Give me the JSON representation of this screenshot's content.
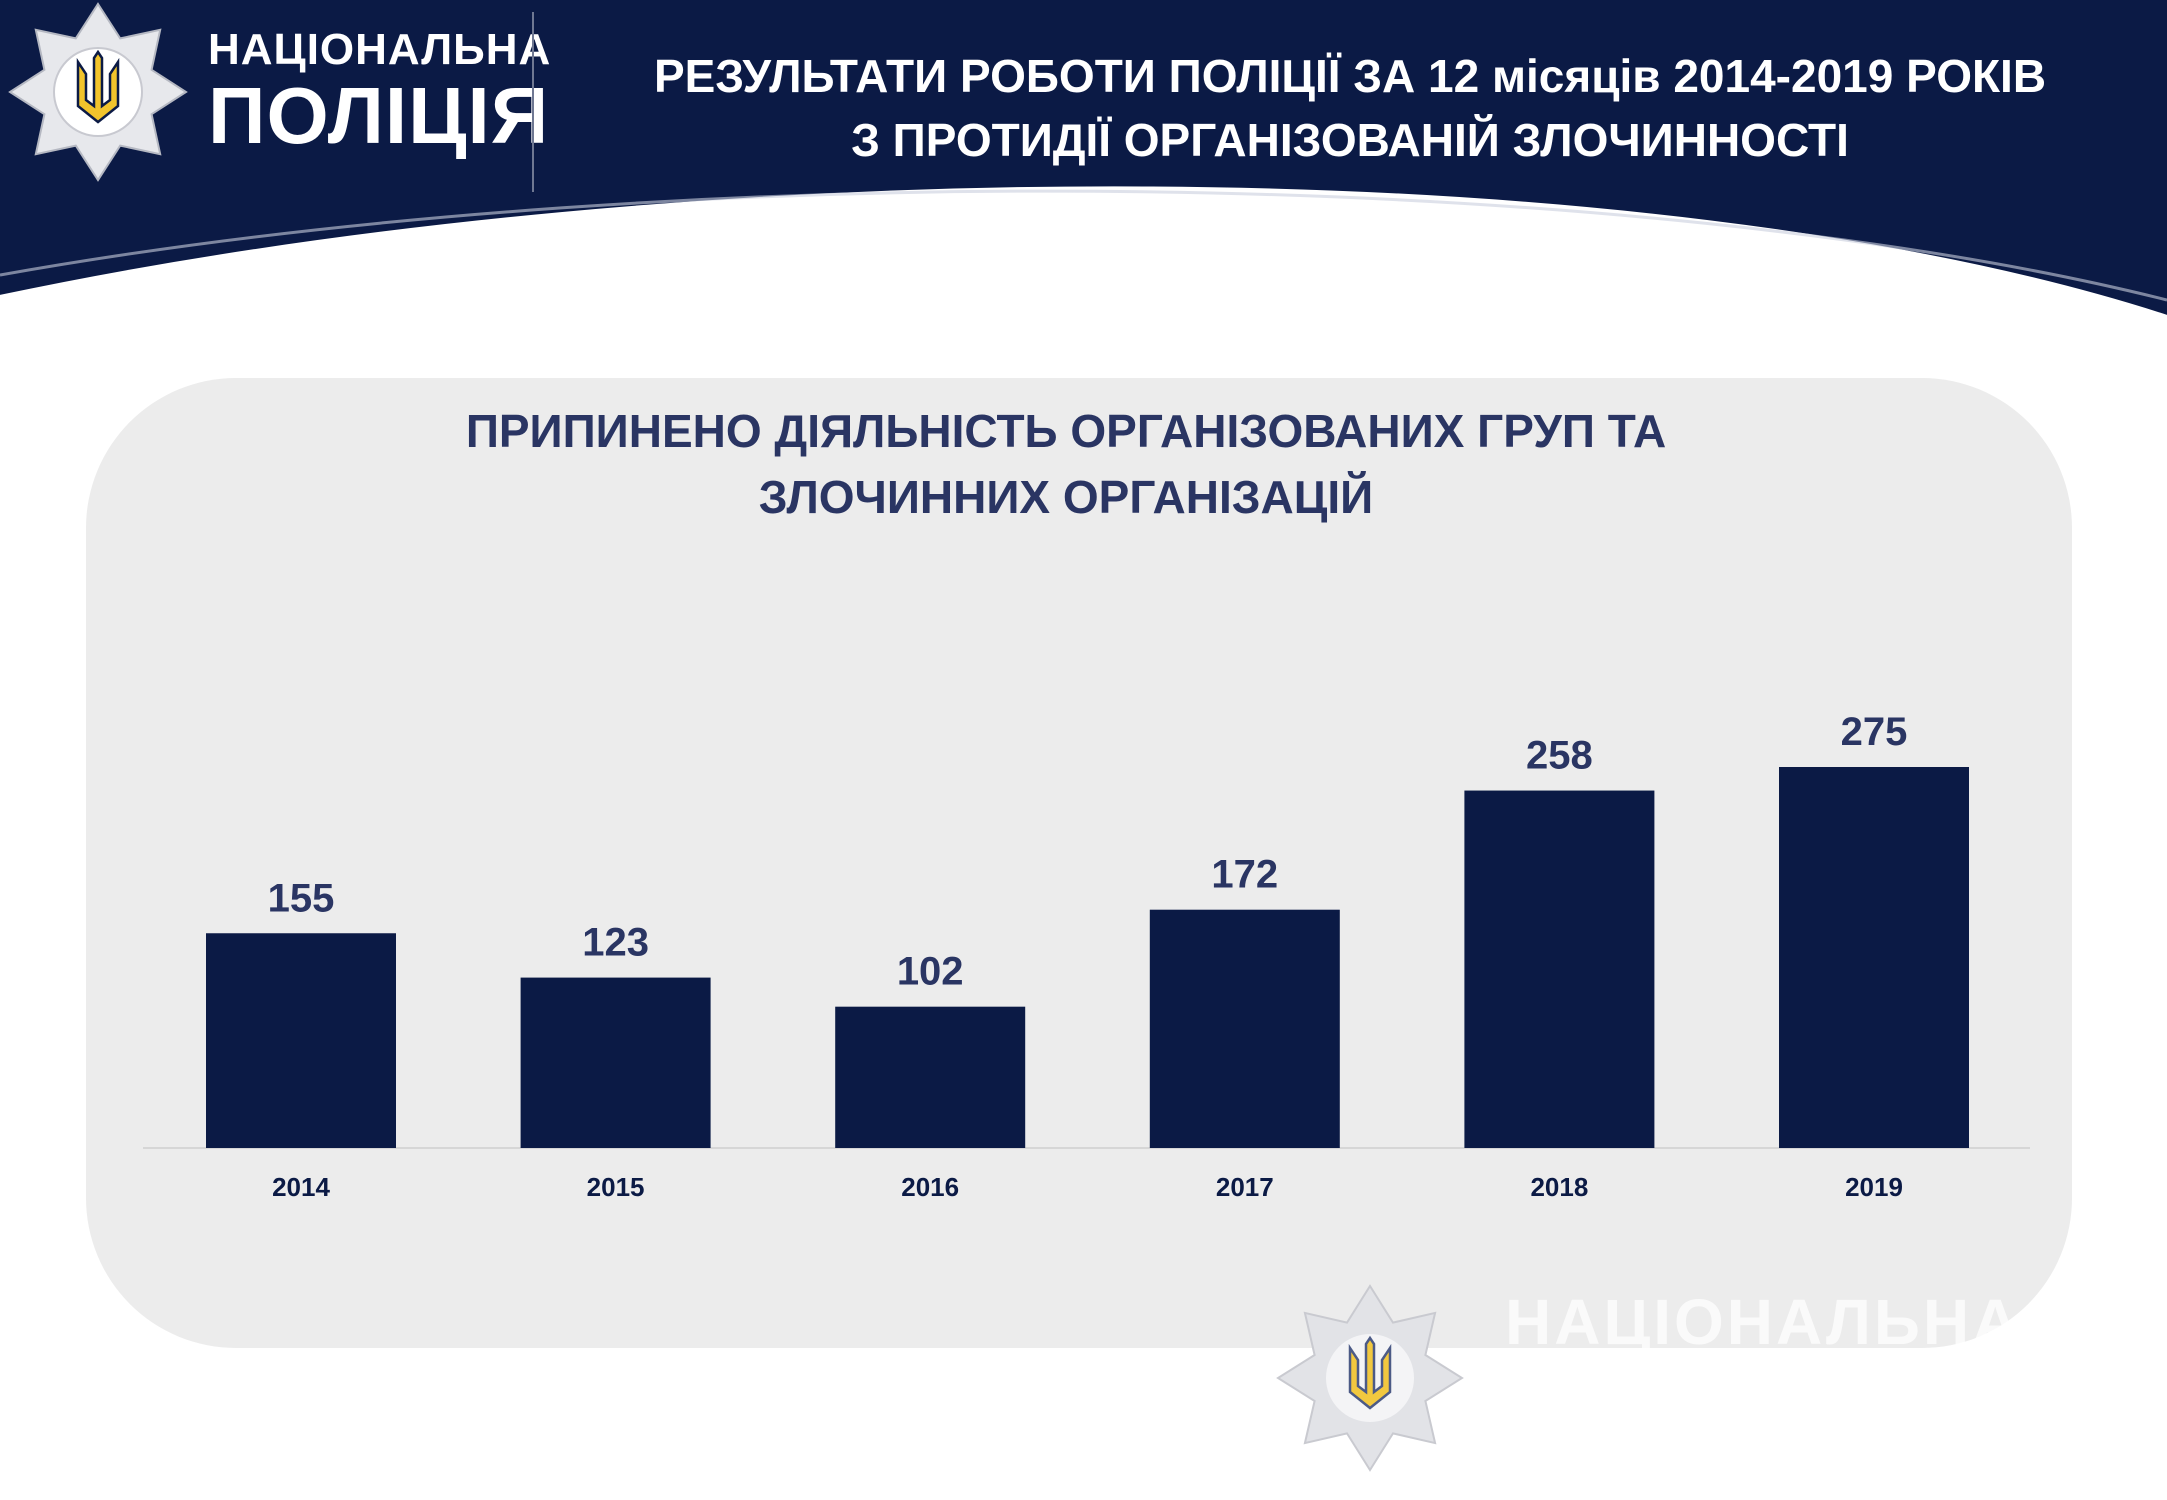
{
  "header": {
    "brand_line1": "НАЦІОНАЛЬНА",
    "brand_line2": "ПОЛІЦІЯ",
    "title_line1": "РЕЗУЛЬТАТИ РОБОТИ ПОЛІЦІЇ ЗА 12 місяців 2014-2019 РОКІВ",
    "title_line2": "З ПРОТИДІЇ ОРГАНІЗОВАНІЙ ЗЛОЧИННОСТІ"
  },
  "watermark": {
    "text": "НАЦІОНАЛЬНА"
  },
  "icons": [
    "police-star-icon",
    "trident-icon"
  ],
  "colors": {
    "navy": "#0b1a45",
    "title_text": "#2a3563",
    "panel": "#ececec",
    "trident": "#f2c42c"
  },
  "chart_data": {
    "type": "bar",
    "title_line1": "ПРИПИНЕНО ДІЯЛЬНІСТЬ ОРГАНІЗОВАНИХ ГРУП ТА",
    "title_line2": "ЗЛОЧИННИХ ОРГАНІЗАЦІЙ",
    "categories": [
      "2014",
      "2015",
      "2016",
      "2017",
      "2018",
      "2019"
    ],
    "values": [
      155,
      123,
      102,
      172,
      258,
      275
    ],
    "value_labels": [
      "155",
      "123",
      "102",
      "172",
      "258",
      "275"
    ],
    "ylim": [
      0,
      300
    ],
    "grid": false,
    "bar_color": "#0b1a45"
  }
}
